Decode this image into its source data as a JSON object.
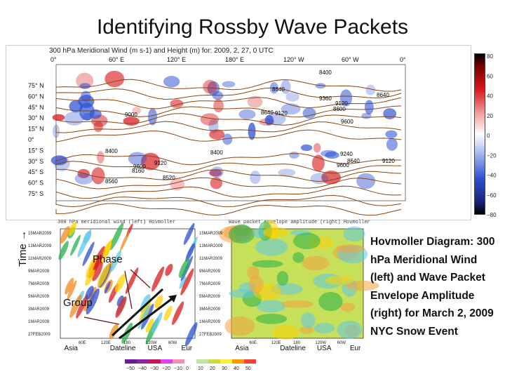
{
  "title": "Identifying Rossby Wave Packets",
  "chart_data": [
    {
      "type": "heatmap",
      "title": "300 hPa Meridional Wind (m s-1) and Height (m) for: 2009, 2, 27, 0 UTC",
      "x_ticks": [
        "0°",
        "60° E",
        "120° E",
        "180° E",
        "120° W",
        "60° W",
        "0°"
      ],
      "y_ticks": [
        "75° N",
        "60° N",
        "45° N",
        "30° N",
        "15° N",
        "0°",
        "15° S",
        "30° S",
        "45° S",
        "60° S",
        "75° S"
      ],
      "contour_labels": [
        "8400",
        "8640",
        "9360",
        "9120",
        "8600",
        "8640",
        "9120",
        "9000",
        "9600",
        "8640",
        "9120",
        "8400",
        "8400",
        "9120",
        "9600",
        "9240",
        "8640",
        "9600",
        "8160",
        "8520",
        "8560"
      ],
      "colorbar_ticks": [
        "80",
        "60",
        "40",
        "20",
        "0",
        "−20",
        "−40",
        "−60",
        "−80"
      ],
      "colors": {
        "positive": "#d7191c",
        "negative": "#2c4fd0",
        "contour": "#8b4513"
      }
    },
    {
      "type": "heatmap",
      "title": "300 hPa meridional wind (left) Hovmoller",
      "y_ticks": [
        "15MAR2009",
        "13MAR2009",
        "11MAR2009",
        "9MAR2009",
        "7MAR2009",
        "5MAR2009",
        "3MAR2009",
        "1MAR2009",
        "27FEB2009"
      ],
      "x_labels": [
        "Asia",
        "Dateline",
        "USA",
        "Eur"
      ],
      "x_ticks": [
        "60E",
        "120E",
        "180",
        "120W",
        "60W"
      ],
      "annotations": [
        "Phase",
        "Group"
      ],
      "y_axis_label": "Time →"
    },
    {
      "type": "heatmap",
      "title": "Wave packet envelope amplitude (right) Hovmoller",
      "y_ticks": [
        "15MAR2009",
        "13MAR2009",
        "11MAR2009",
        "9MAR2009",
        "7MAR2009",
        "5MAR2009",
        "3MAR2009",
        "1MAR2009",
        "27FEB2009"
      ],
      "x_labels": [
        "Asia",
        "Dateline",
        "USA",
        "Eur"
      ],
      "x_ticks": [
        "60E",
        "120E",
        "180",
        "120W",
        "60W"
      ],
      "colorbar_ticks": [
        "−50",
        "−40",
        "−30",
        "−20",
        "−10",
        "0",
        "10",
        "20",
        "30",
        "40",
        "50"
      ]
    }
  ],
  "description": "Hovmoller Diagram: 300 hPa Meridional Wind (left) and Wave Packet Envelope Amplitude (right) for March 2, 2009 NYC Snow Event"
}
